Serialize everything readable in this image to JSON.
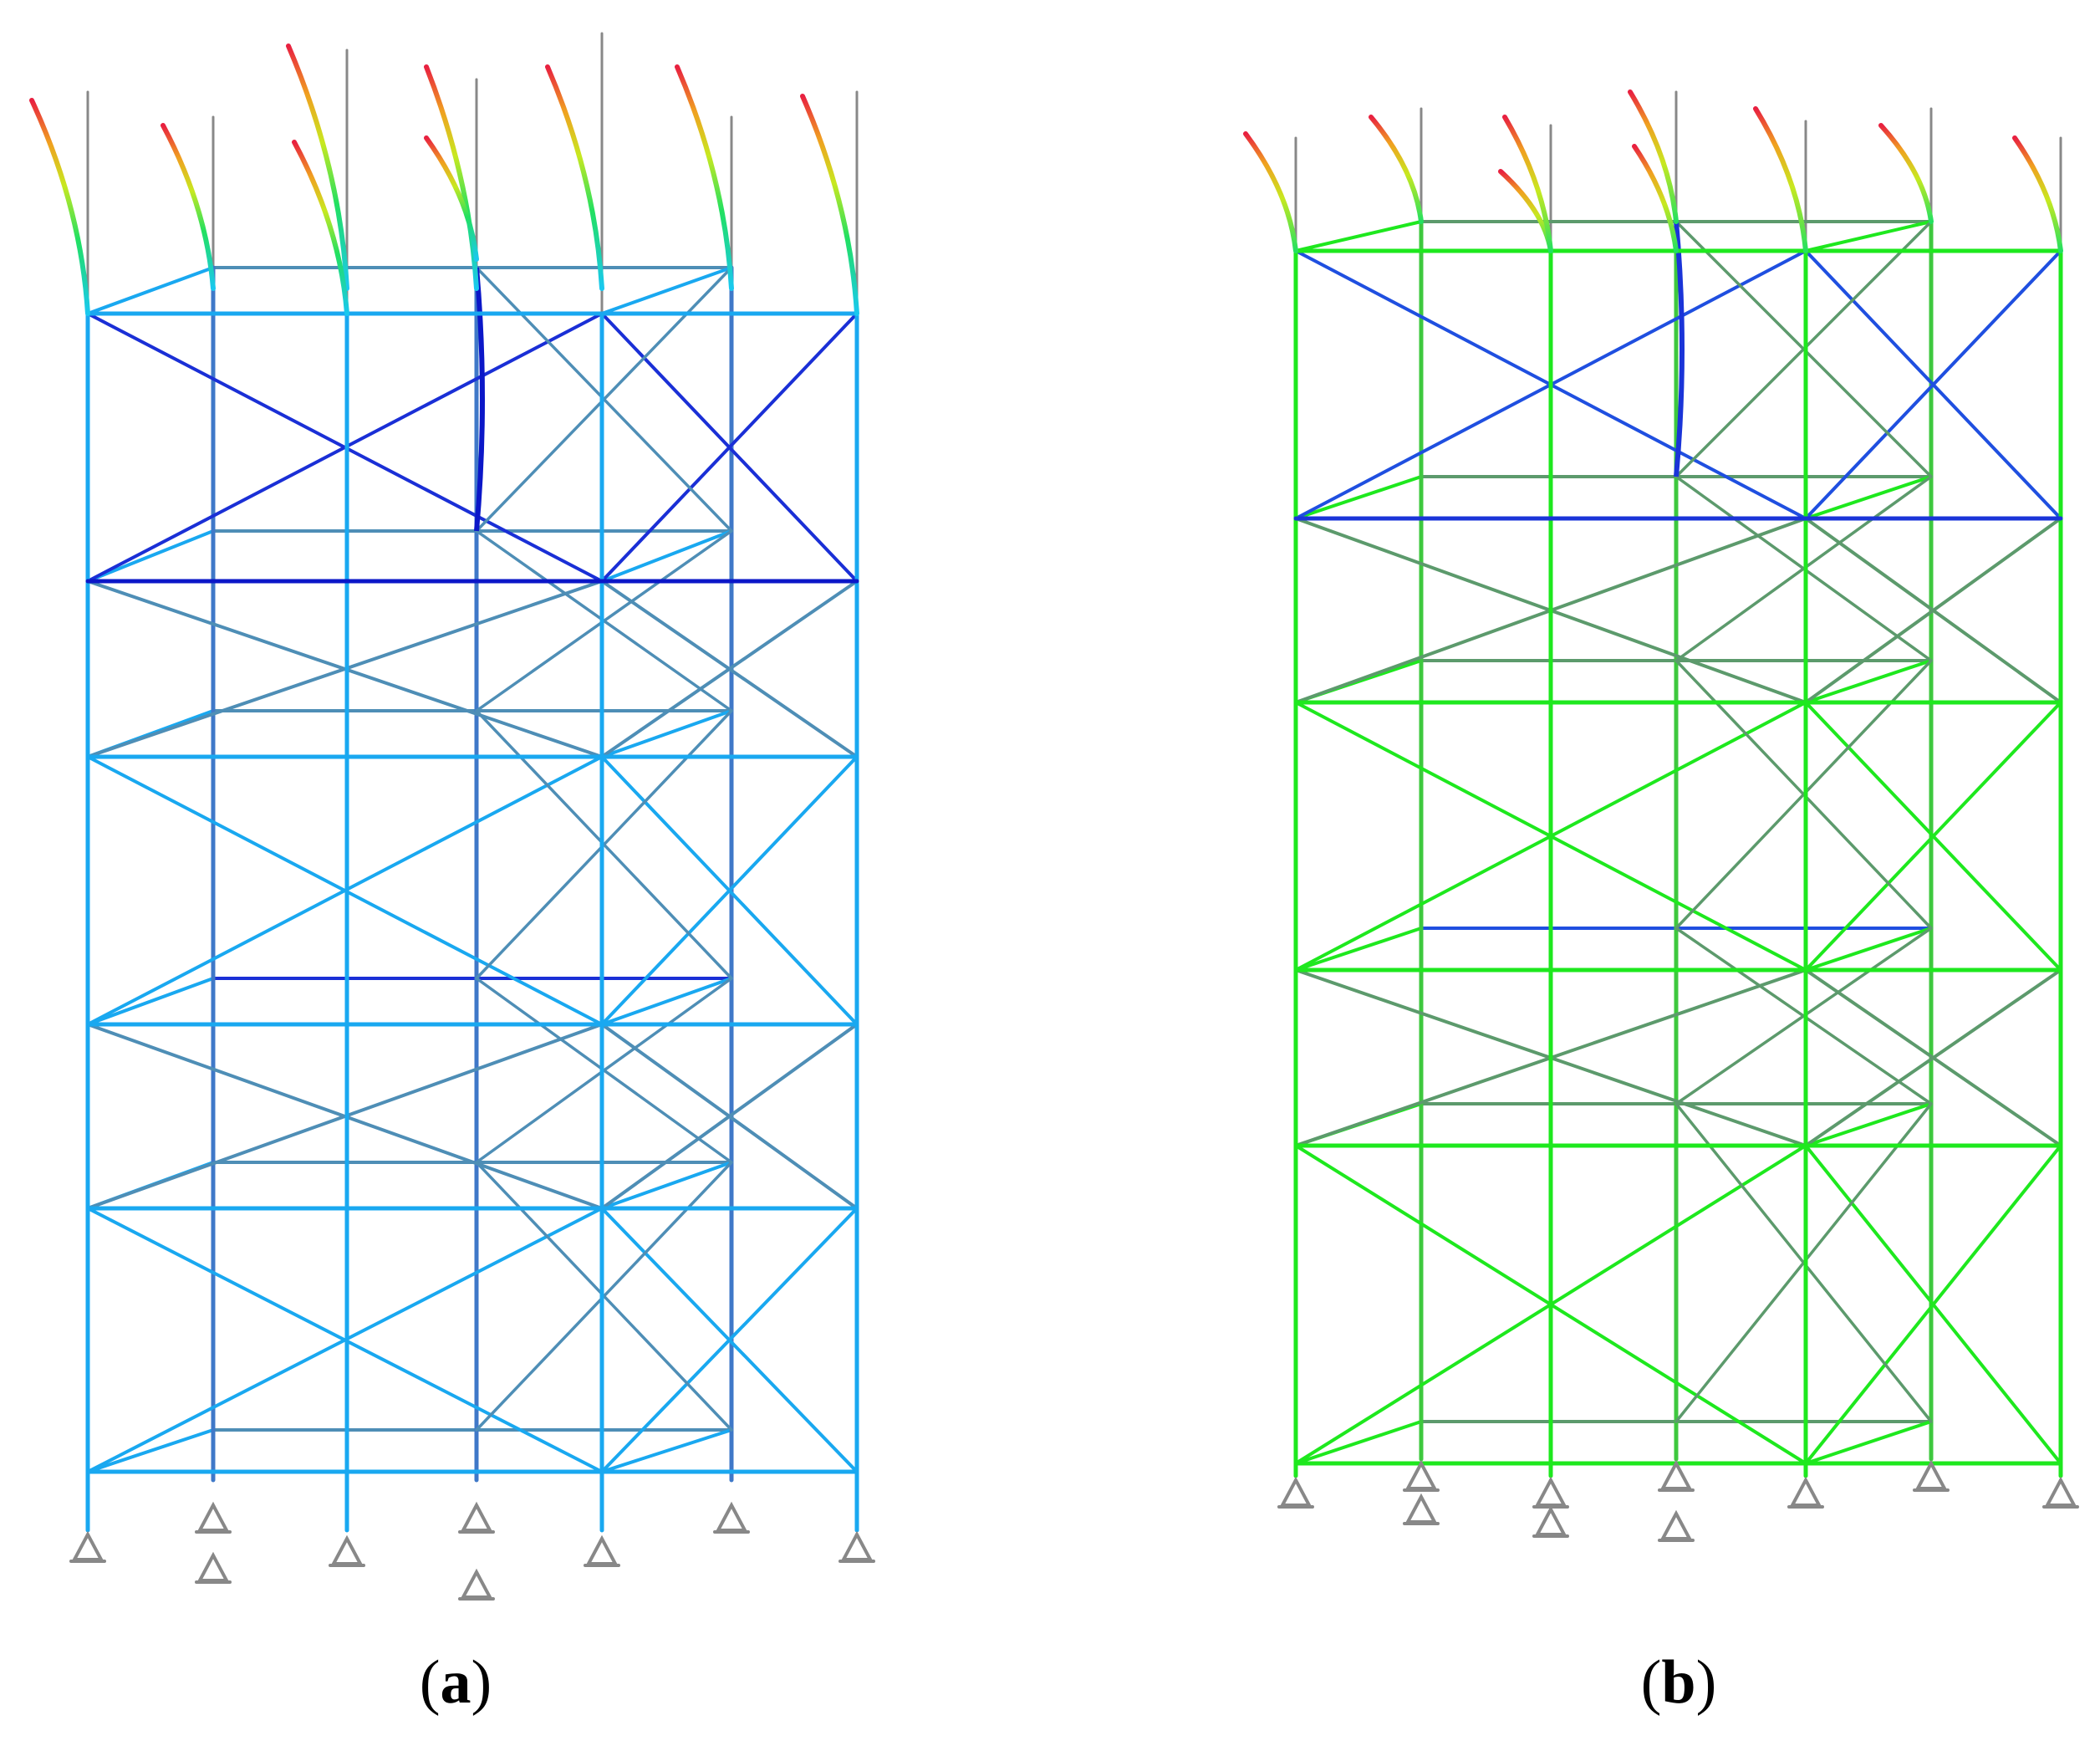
{
  "figure": {
    "panels": [
      {
        "id": "a",
        "caption_open": "(",
        "caption_letter": "a",
        "caption_close": ")",
        "palette": {
          "primary": "#19a8f0",
          "secondary": "#3f78c8",
          "stressed": "#1a2fd6",
          "deep": "#0b17c8",
          "steel": "#4e8eb6"
        }
      },
      {
        "id": "b",
        "caption_open": "(",
        "caption_letter": "b",
        "caption_close": ")",
        "palette": {
          "primary": "#1ee81e",
          "secondary": "#3ec83e",
          "stressed": "#1f4fe0",
          "deep": "#1a34d8",
          "steel": "#5c9a6c"
        }
      }
    ],
    "neutral_color": "#888888",
    "tip_gradient": [
      "#19c8f0",
      "#22e060",
      "#c8e820",
      "#f0a020",
      "#e82040"
    ]
  }
}
